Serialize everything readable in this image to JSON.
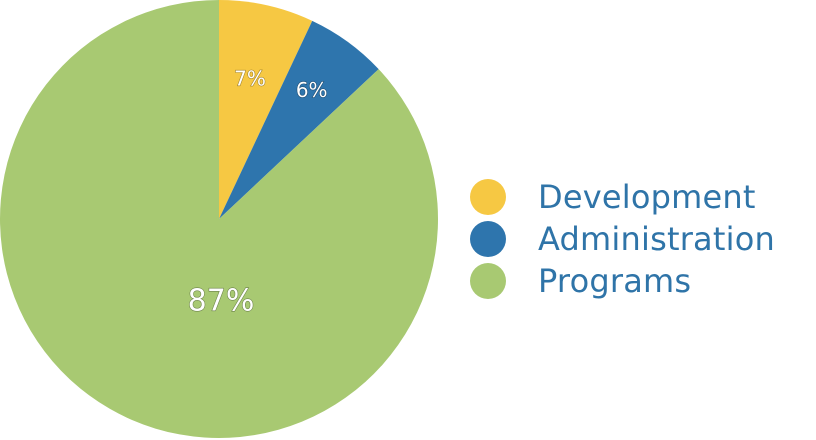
{
  "chart_data": {
    "type": "pie",
    "title": "",
    "slices": [
      {
        "name": "Development",
        "value": 7,
        "label": "7%",
        "color": "#f6c843"
      },
      {
        "name": "Administration",
        "value": 6,
        "label": "6%",
        "color": "#2e75ad"
      },
      {
        "name": "Programs",
        "value": 87,
        "label": "87%",
        "color": "#a8c972"
      }
    ],
    "legend_position": "right",
    "start_angle": "12 o'clock",
    "direction": "clockwise"
  },
  "colors": {
    "legend_text": "#2f74a8",
    "label_text": "#ffffff"
  }
}
